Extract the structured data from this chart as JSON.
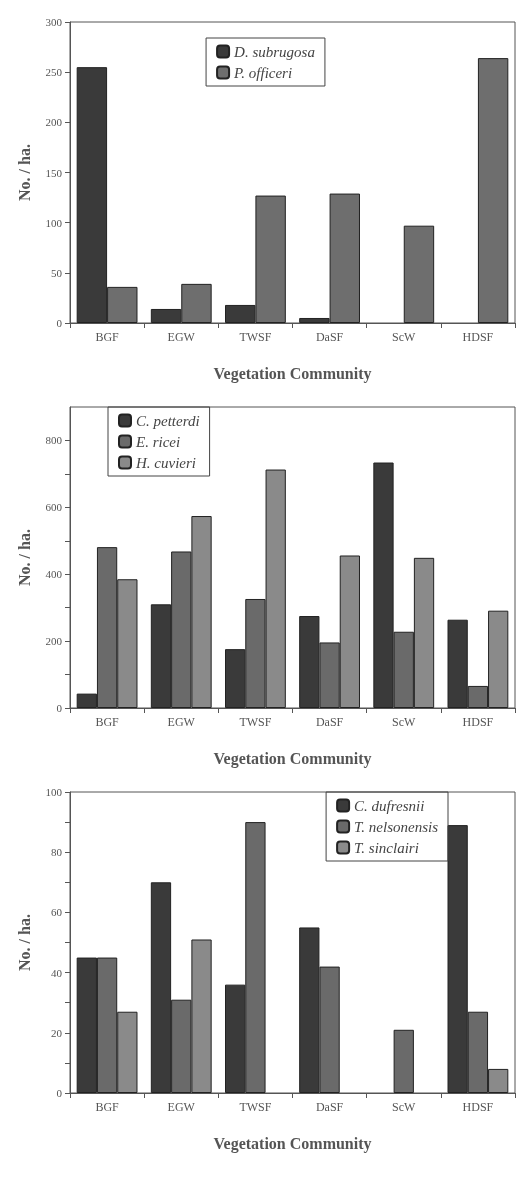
{
  "chart_data": [
    {
      "type": "bar",
      "xlabel": "Vegetation Community",
      "ylabel": "No. / ha.",
      "categories": [
        "BGF",
        "EGW",
        "TWSF",
        "DaSF",
        "ScW",
        "HDSF"
      ],
      "ylim": [
        0,
        300
      ],
      "yticks": [
        0,
        50,
        100,
        150,
        200,
        250,
        300
      ],
      "legend": "top",
      "grid": false,
      "series": [
        {
          "name": "D. subrugosa",
          "color": "#3a3a3a",
          "values": [
            255,
            14,
            18,
            5,
            0,
            0
          ]
        },
        {
          "name": "P. officeri",
          "color": "#6e6e6e",
          "values": [
            36,
            39,
            127,
            129,
            97,
            264
          ]
        }
      ]
    },
    {
      "type": "bar",
      "xlabel": "Vegetation Community",
      "ylabel": "No. / ha.",
      "categories": [
        "BGF",
        "EGW",
        "TWSF",
        "DaSF",
        "ScW",
        "HDSF"
      ],
      "ylim": [
        0,
        900
      ],
      "yticks": [
        0,
        {
          "value": 100,
          "label": null
        },
        200,
        {
          "value": 300,
          "label": null
        },
        400,
        {
          "value": 500,
          "label": null
        },
        600,
        {
          "value": 700,
          "label": null
        },
        800
      ],
      "legend": "top left",
      "grid": false,
      "series": [
        {
          "name": "C. petterdi",
          "color": "#3a3a3a",
          "values": [
            43,
            310,
            176,
            275,
            734,
            264
          ]
        },
        {
          "name": "E. ricei",
          "color": "#6a6a6a",
          "values": [
            481,
            468,
            326,
            196,
            228,
            66
          ]
        },
        {
          "name": "H. cuvieri",
          "color": "#8a8a8a",
          "values": [
            385,
            574,
            713,
            456,
            449,
            291
          ]
        }
      ]
    },
    {
      "type": "bar",
      "xlabel": "Vegetation Community",
      "ylabel": "No. / ha.",
      "categories": [
        "BGF",
        "EGW",
        "TWSF",
        "DaSF",
        "ScW",
        "HDSF"
      ],
      "ylim": [
        0,
        100
      ],
      "yticks": [
        0,
        {
          "value": 10,
          "label": null
        },
        20,
        {
          "value": 30,
          "label": null
        },
        40,
        {
          "value": 50,
          "label": null
        },
        60,
        {
          "value": 70,
          "label": null
        },
        80,
        {
          "value": 90,
          "label": null
        },
        100
      ],
      "legend": "top right",
      "grid": false,
      "series": [
        {
          "name": "C. dufresnii",
          "color": "#3a3a3a",
          "values": [
            45,
            70,
            36,
            55,
            0,
            89
          ]
        },
        {
          "name": "T. nelsonensis",
          "color": "#6a6a6a",
          "values": [
            45,
            31,
            90,
            42,
            21,
            27
          ]
        },
        {
          "name": "T. sinclairi",
          "color": "#8a8a8a",
          "values": [
            27,
            51,
            0,
            0,
            0,
            8
          ]
        }
      ]
    }
  ]
}
